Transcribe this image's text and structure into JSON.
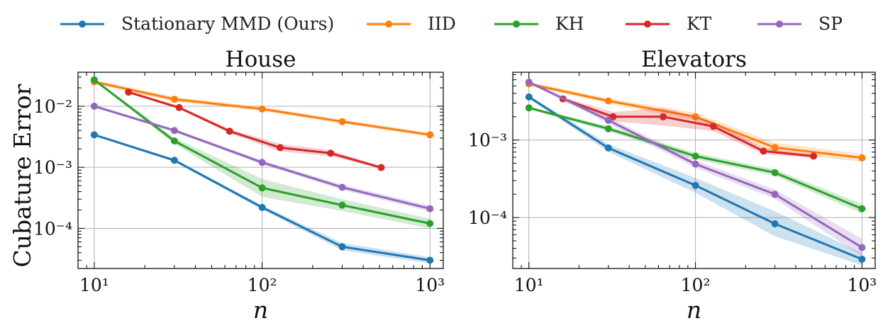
{
  "legend": [
    {
      "label": "Stationary MMD (Ours)",
      "color": "#1f77b4"
    },
    {
      "label": "IID",
      "color": "#ff7f0e"
    },
    {
      "label": "KH",
      "color": "#2ca02c"
    },
    {
      "label": "KT",
      "color": "#d62728"
    },
    {
      "label": "SP",
      "color": "#9467bd"
    }
  ],
  "y_axis_label": "Cubature Error",
  "chart_data": [
    {
      "type": "line",
      "title": "House",
      "xlabel": "n",
      "xscale": "log",
      "yscale": "log",
      "xlim": [
        8,
        1200
      ],
      "ylim": [
        2.2e-05,
        0.036
      ],
      "xticks": [
        {
          "value": 10,
          "label": "10¹"
        },
        {
          "value": 100,
          "label": "10²"
        },
        {
          "value": 1000,
          "label": "10³"
        }
      ],
      "yticks": [
        {
          "value": 0.01,
          "label": "10⁻²"
        },
        {
          "value": 0.001,
          "label": "10⁻³"
        },
        {
          "value": 0.0001,
          "label": "10⁻⁴"
        }
      ],
      "grid": true,
      "series": [
        {
          "name": "Stationary MMD (Ours)",
          "color": "#1f77b4",
          "x": [
            10,
            30,
            100,
            300,
            1000
          ],
          "y": [
            0.0034,
            0.0013,
            0.00022,
            5e-05,
            3e-05
          ],
          "band": [
            0.04,
            0.06,
            0.08,
            0.15,
            0.12
          ]
        },
        {
          "name": "IID",
          "color": "#ff7f0e",
          "x": [
            10,
            30,
            100,
            300,
            1000
          ],
          "y": [
            0.025,
            0.013,
            0.009,
            0.0056,
            0.0034
          ],
          "band": [
            0.08,
            0.1,
            0.08,
            0.08,
            0.08
          ]
        },
        {
          "name": "KH",
          "color": "#2ca02c",
          "x": [
            10,
            30,
            100,
            300,
            1000
          ],
          "y": [
            0.027,
            0.0027,
            0.00046,
            0.00024,
            0.00012
          ],
          "band": [
            0.04,
            0.12,
            0.4,
            0.25,
            0.2
          ]
        },
        {
          "name": "KT",
          "color": "#d62728",
          "x": [
            16,
            32,
            64,
            128,
            256,
            512
          ],
          "y": [
            0.017,
            0.0095,
            0.0039,
            0.0021,
            0.0017,
            0.00099
          ],
          "band": [
            0.05,
            0.06,
            0.08,
            0.15,
            0.12,
            0.04
          ]
        },
        {
          "name": "SP",
          "color": "#9467bd",
          "x": [
            10,
            30,
            100,
            300,
            1000
          ],
          "y": [
            0.01,
            0.004,
            0.0012,
            0.00047,
            0.00021
          ],
          "band": [
            0.05,
            0.06,
            0.08,
            0.1,
            0.12
          ]
        }
      ]
    },
    {
      "type": "line",
      "title": "Elevators",
      "xlabel": "n",
      "xscale": "log",
      "yscale": "log",
      "xlim": [
        8,
        1200
      ],
      "ylim": [
        2.2e-05,
        0.0075
      ],
      "xticks": [
        {
          "value": 10,
          "label": "10¹"
        },
        {
          "value": 100,
          "label": "10²"
        },
        {
          "value": 1000,
          "label": "10³"
        }
      ],
      "yticks": [
        {
          "value": 0.001,
          "label": "10⁻³"
        },
        {
          "value": 0.0001,
          "label": "10⁻⁴"
        }
      ],
      "grid": true,
      "series": [
        {
          "name": "Stationary MMD (Ours)",
          "color": "#1f77b4",
          "x": [
            10,
            30,
            100,
            300,
            1000
          ],
          "y": [
            0.0036,
            0.00079,
            0.00026,
            8.3e-05,
            2.9e-05
          ],
          "band": [
            0.05,
            0.12,
            0.25,
            0.45,
            0.2
          ]
        },
        {
          "name": "IID",
          "color": "#ff7f0e",
          "x": [
            10,
            30,
            100,
            300,
            1000
          ],
          "y": [
            0.0053,
            0.0032,
            0.002,
            0.0008,
            0.00059
          ],
          "band": [
            0.06,
            0.08,
            0.12,
            0.15,
            0.12
          ]
        },
        {
          "name": "KH",
          "color": "#2ca02c",
          "x": [
            10,
            30,
            100,
            300,
            1000
          ],
          "y": [
            0.0026,
            0.0014,
            0.00062,
            0.00038,
            0.00013
          ],
          "band": [
            0.04,
            0.08,
            0.1,
            0.1,
            0.15
          ]
        },
        {
          "name": "KT",
          "color": "#d62728",
          "x": [
            16,
            32,
            64,
            128,
            256,
            512
          ],
          "y": [
            0.0034,
            0.002,
            0.002,
            0.0015,
            0.00072,
            0.00062
          ],
          "band": [
            0.05,
            0.15,
            0.3,
            0.15,
            0.1,
            0.06
          ]
        },
        {
          "name": "SP",
          "color": "#9467bd",
          "x": [
            10,
            30,
            100,
            300,
            1000
          ],
          "y": [
            0.0056,
            0.0018,
            0.00049,
            0.0002,
            4.1e-05
          ],
          "band": [
            0.04,
            0.1,
            0.12,
            0.15,
            0.3
          ]
        }
      ]
    }
  ]
}
